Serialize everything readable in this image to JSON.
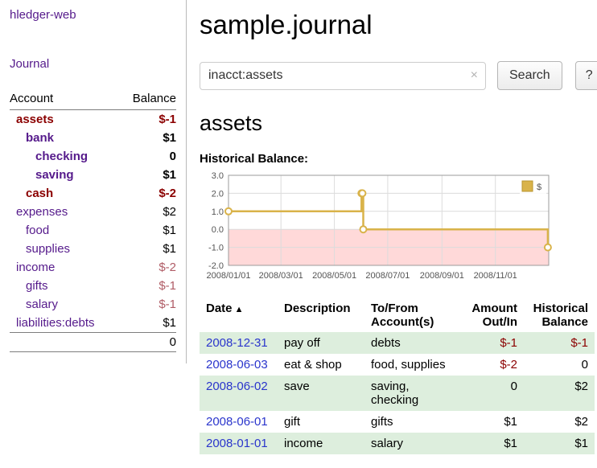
{
  "colors": {
    "link_purple": "#551a8b",
    "date_link_blue": "#2a35cc",
    "negative_strong": "#8b0000",
    "negative_soft": "#b05c66",
    "row_green": "#ddeedd",
    "chart_line": "#d9b34a",
    "chart_line_border": "#b9962f",
    "chart_negative_region": "#ffd9d9"
  },
  "app": {
    "title": "hledger-web"
  },
  "sidebar": {
    "journal_label": "Journal",
    "accounts": {
      "headers": {
        "account": "Account",
        "balance": "Balance"
      },
      "rows": [
        {
          "account": "assets",
          "balance": "$-1",
          "indent": 0,
          "bold": true,
          "name_negative": true,
          "balance_negative": "strong"
        },
        {
          "account": "bank",
          "balance": "$1",
          "indent": 1,
          "bold": true,
          "name_negative": false,
          "balance_negative": "none"
        },
        {
          "account": "checking",
          "balance": "0",
          "indent": 2,
          "bold": true,
          "name_negative": false,
          "balance_negative": "none"
        },
        {
          "account": "saving",
          "balance": "$1",
          "indent": 2,
          "bold": true,
          "name_negative": false,
          "balance_negative": "none"
        },
        {
          "account": "cash",
          "balance": "$-2",
          "indent": 1,
          "bold": true,
          "name_negative": true,
          "balance_negative": "strong"
        },
        {
          "account": "expenses",
          "balance": "$2",
          "indent": 0,
          "bold": false,
          "name_negative": false,
          "balance_negative": "none"
        },
        {
          "account": "food",
          "balance": "$1",
          "indent": 1,
          "bold": false,
          "name_negative": false,
          "balance_negative": "none"
        },
        {
          "account": "supplies",
          "balance": "$1",
          "indent": 1,
          "bold": false,
          "name_negative": false,
          "balance_negative": "none"
        },
        {
          "account": "income",
          "balance": "$-2",
          "indent": 0,
          "bold": false,
          "name_negative": false,
          "balance_negative": "soft"
        },
        {
          "account": "gifts",
          "balance": "$-1",
          "indent": 1,
          "bold": false,
          "name_negative": false,
          "balance_negative": "soft"
        },
        {
          "account": "salary",
          "balance": "$-1",
          "indent": 1,
          "bold": false,
          "name_negative": false,
          "balance_negative": "soft"
        },
        {
          "account": "liabilities:debts",
          "balance": "$1",
          "indent": 0,
          "bold": false,
          "name_negative": false,
          "balance_negative": "none"
        }
      ],
      "total": "0"
    }
  },
  "main": {
    "title": "sample.journal",
    "search": {
      "value": "inacct:assets",
      "clear_icon": "×",
      "button_label": "Search",
      "help_label": "?"
    },
    "account_heading": "assets",
    "chart_title": "Historical Balance:",
    "chart_data": {
      "type": "line",
      "step": true,
      "title": "Historical Balance",
      "legend": {
        "label": "$",
        "position": "top-right"
      },
      "xlim": [
        "2008/01/01",
        "2009/01/01"
      ],
      "ylim": [
        -2,
        3
      ],
      "ytick_labels": [
        "3.0",
        "2.0",
        "1.0",
        "0.0",
        "-1.0",
        "-2.0"
      ],
      "ytick_values": [
        3,
        2,
        1,
        0,
        -1,
        -2
      ],
      "xticks": [
        "2008/01/01",
        "2008/03/01",
        "2008/05/01",
        "2008/07/01",
        "2008/09/01",
        "2008/11/01"
      ],
      "series": [
        {
          "name": "$",
          "points": [
            {
              "date": "2008/01/01",
              "value": 1
            },
            {
              "date": "2008/06/01",
              "value": 2
            },
            {
              "date": "2008/06/02",
              "value": 2
            },
            {
              "date": "2008/06/03",
              "value": 0
            },
            {
              "date": "2008/12/31",
              "value": -1
            }
          ]
        }
      ],
      "negative_region": {
        "from": 0,
        "to": -2
      }
    },
    "register": {
      "sort_icon": "▲",
      "headers": [
        {
          "label": "Date",
          "align": "left",
          "sorted": "asc"
        },
        {
          "label": "Description",
          "align": "left"
        },
        {
          "label": "To/From Account(s)",
          "align": "left"
        },
        {
          "label": "Amount Out/In",
          "align": "right"
        },
        {
          "label": "Historical Balance",
          "align": "right"
        }
      ],
      "rows": [
        {
          "date": "2008-12-31",
          "description": "pay off",
          "accounts": "debts",
          "amount": "$-1",
          "amount_negative": true,
          "balance": "$-1",
          "balance_negative": true,
          "shaded": true
        },
        {
          "date": "2008-06-03",
          "description": "eat & shop",
          "accounts": "food, supplies",
          "amount": "$-2",
          "amount_negative": true,
          "balance": "0",
          "balance_negative": false,
          "shaded": false
        },
        {
          "date": "2008-06-02",
          "description": "save",
          "accounts": "saving, checking",
          "amount": "0",
          "amount_negative": false,
          "balance": "$2",
          "balance_negative": false,
          "shaded": true
        },
        {
          "date": "2008-06-01",
          "description": "gift",
          "accounts": "gifts",
          "amount": "$1",
          "amount_negative": false,
          "balance": "$2",
          "balance_negative": false,
          "shaded": false
        },
        {
          "date": "2008-01-01",
          "description": "income",
          "accounts": "salary",
          "amount": "$1",
          "amount_negative": false,
          "balance": "$1",
          "balance_negative": false,
          "shaded": true
        }
      ]
    }
  }
}
